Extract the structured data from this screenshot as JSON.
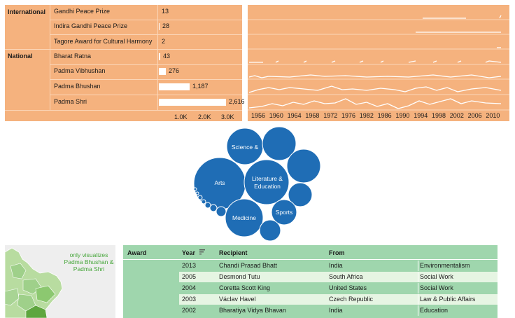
{
  "awards_table": {
    "groups": [
      "International",
      "National"
    ],
    "rows": [
      {
        "name": "Gandhi Peace Prize",
        "count": "13",
        "value": 13
      },
      {
        "name": "Indira Gandhi Peace Prize",
        "count": "28",
        "value": 28
      },
      {
        "name": "Tagore Award for Cultural Harmony",
        "count": "2",
        "value": 2
      },
      {
        "name": "Bharat Ratna",
        "count": "43",
        "value": 43
      },
      {
        "name": "Padma Vibhushan",
        "count": "276",
        "value": 276
      },
      {
        "name": "Padma Bhushan",
        "count": "1,187",
        "value": 1187
      },
      {
        "name": "Padma Shri",
        "count": "2,616",
        "value": 2616
      }
    ],
    "axis_ticks": [
      "1.0K",
      "2.0K",
      "3.0K"
    ],
    "axis_max": 3000
  },
  "timeline": {
    "year_ticks": [
      "1956",
      "1960",
      "1964",
      "1968",
      "1972",
      "1976",
      "1982",
      "1986",
      "1990",
      "1994",
      "1998",
      "2002",
      "2006",
      "2010"
    ]
  },
  "bubbles": {
    "labels": {
      "science": "Science &",
      "arts": "Arts",
      "literature": "Literature & Education",
      "medicine": "Medicine",
      "sports": "Sports"
    }
  },
  "map": {
    "note": "only visualizes Padma Bhushan & Padma Shri"
  },
  "recipients": {
    "headers": {
      "award": "Award",
      "year": "Year",
      "recipient": "Recipient",
      "from": "From"
    },
    "rows": [
      {
        "year": "2013",
        "recipient": "Chandi Prasad Bhatt",
        "from": "India",
        "field": "Environmentalism"
      },
      {
        "year": "2005",
        "recipient": "Desmond Tutu",
        "from": "South Africa",
        "field": "Social Work"
      },
      {
        "year": "2004",
        "recipient": "Coretta Scott King",
        "from": "United States",
        "field": "Social Work"
      },
      {
        "year": "2003",
        "recipient": "Václav Havel",
        "from": "Czech Republic",
        "field": "Law & Public Affairs"
      },
      {
        "year": "2002",
        "recipient": "Bharatiya Vidya Bhavan",
        "from": "India",
        "field": "Education"
      }
    ]
  },
  "colors": {
    "panel_orange": "#f5b27e",
    "bubble_blue": "#1f6db5",
    "table_green": "#9fd6ad",
    "map_green": "#8cc870"
  }
}
